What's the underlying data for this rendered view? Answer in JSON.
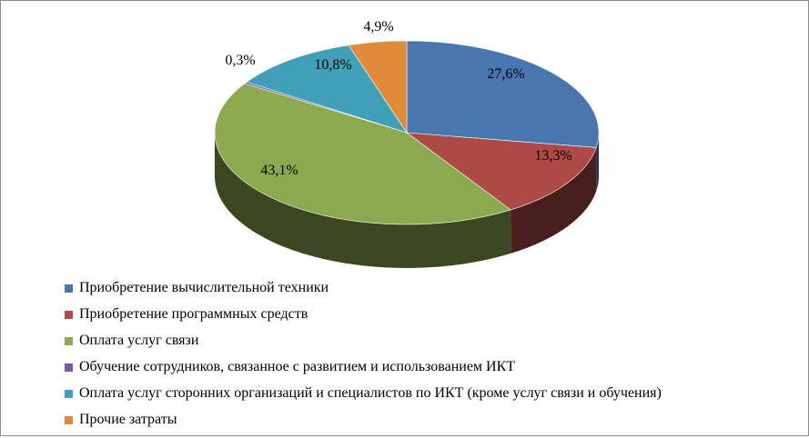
{
  "colors": {
    "blue": "#4a76b0",
    "red": "#ad4a45",
    "green": "#8ba94f",
    "purple": "#7a5a9c",
    "teal": "#3fa0b7",
    "orange": "#e08a3a"
  },
  "chart_data": {
    "type": "pie",
    "style": "3d",
    "legend_position": "bottom-left",
    "labels": [
      "Приобретение вычислительной техники",
      "Приобретение программных средств",
      "Оплата услуг связи",
      "Обучение сотрудников, связанное с развитием и использованием ИКТ",
      "Оплата услуг сторонних организаций и специалистов по ИКТ (кроме услуг связи и обучения)",
      "Прочие затраты"
    ],
    "values": [
      27.6,
      13.3,
      43.1,
      0.3,
      10.8,
      4.9
    ],
    "value_labels": [
      "27,6%",
      "13,3%",
      "43,1%",
      "0,3%",
      "10,8%",
      "4,9%"
    ],
    "colors": [
      "#4a76b0",
      "#ad4a45",
      "#8ba94f",
      "#7a5a9c",
      "#3fa0b7",
      "#e08a3a"
    ]
  }
}
